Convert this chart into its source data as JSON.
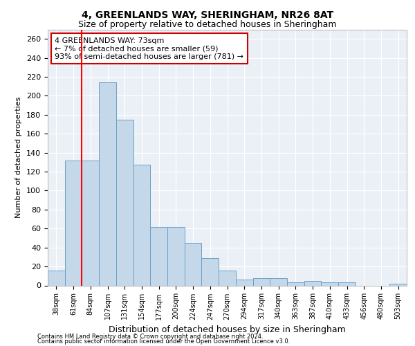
{
  "title1": "4, GREENLANDS WAY, SHERINGHAM, NR26 8AT",
  "title2": "Size of property relative to detached houses in Sheringham",
  "xlabel": "Distribution of detached houses by size in Sheringham",
  "ylabel": "Number of detached properties",
  "categories": [
    "38sqm",
    "61sqm",
    "84sqm",
    "107sqm",
    "131sqm",
    "154sqm",
    "177sqm",
    "200sqm",
    "224sqm",
    "247sqm",
    "270sqm",
    "294sqm",
    "317sqm",
    "340sqm",
    "363sqm",
    "387sqm",
    "410sqm",
    "433sqm",
    "456sqm",
    "480sqm",
    "503sqm"
  ],
  "values": [
    16,
    132,
    132,
    214,
    175,
    127,
    62,
    62,
    45,
    29,
    16,
    6,
    8,
    8,
    3,
    5,
    3,
    3,
    0,
    0,
    2
  ],
  "bar_color": "#c5d8ea",
  "bar_edge_color": "#6aa0c7",
  "red_line_x": 1.5,
  "annotation_text": "4 GREENLANDS WAY: 73sqm\n← 7% of detached houses are smaller (59)\n93% of semi-detached houses are larger (781) →",
  "annotation_box_color": "#ffffff",
  "annotation_box_edge_color": "#cc0000",
  "footer1": "Contains HM Land Registry data © Crown copyright and database right 2024.",
  "footer2": "Contains public sector information licensed under the Open Government Licence v3.0.",
  "bg_color": "#eaf0f6",
  "ylim": [
    0,
    270
  ],
  "yticks": [
    0,
    20,
    40,
    60,
    80,
    100,
    120,
    140,
    160,
    180,
    200,
    220,
    240,
    260
  ]
}
